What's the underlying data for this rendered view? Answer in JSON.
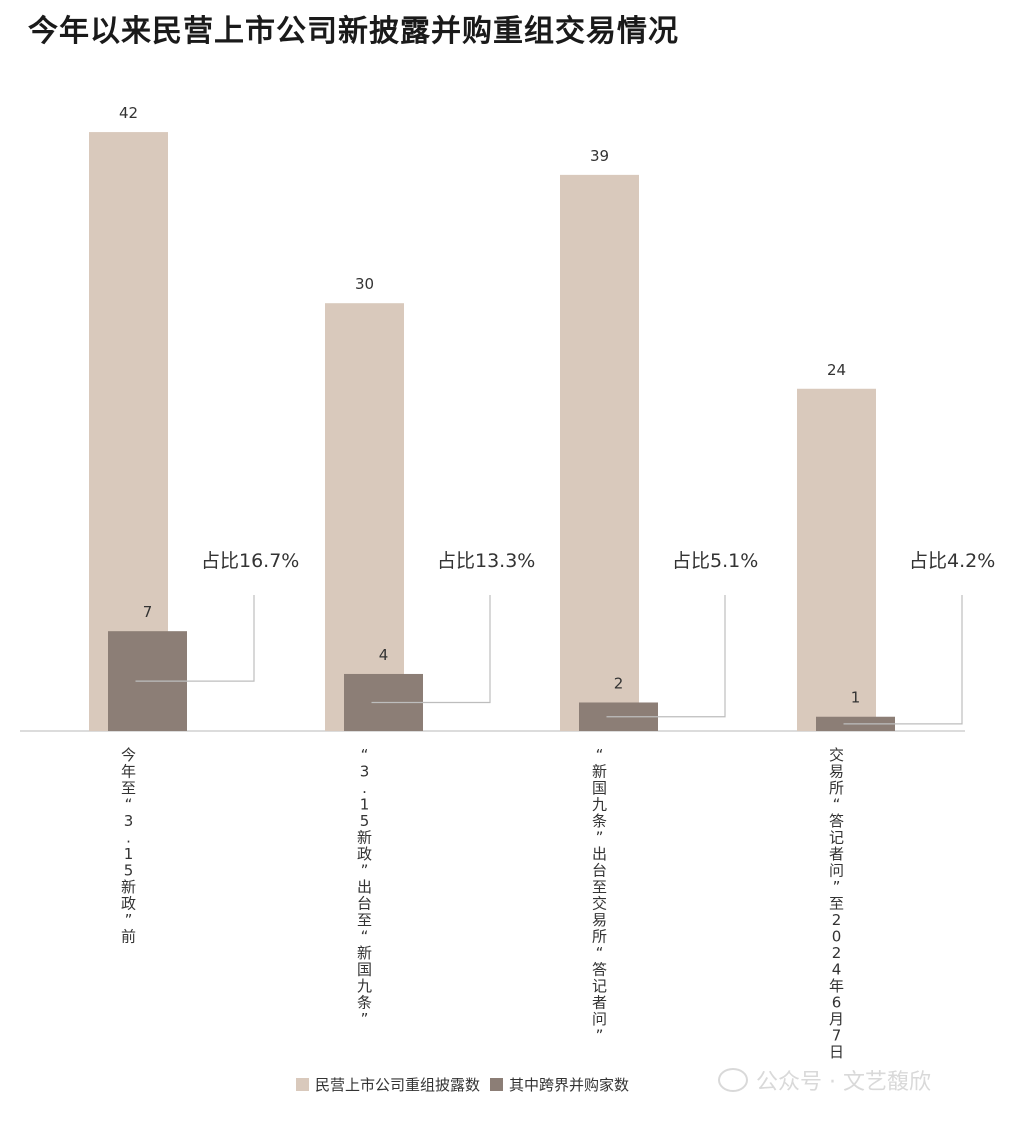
{
  "chart_data": {
    "type": "bar",
    "title": "今年以来民营上市公司新披露并购重组交易情况",
    "categories": [
      "今年至“3.15新政”前",
      "“3.15新政”出台至“新国九条”",
      "“新国九条”出台至交易所“答记者问”",
      "交易所“答记者问”至2024年6月7日"
    ],
    "series": [
      {
        "name": "民营上市公司重组披露数",
        "values": [
          42,
          30,
          39,
          24
        ],
        "color": "#d9c9bc"
      },
      {
        "name": "其中跨界并购家数",
        "values": [
          7,
          4,
          2,
          1
        ],
        "color": "#8c7e76"
      }
    ],
    "annotations": [
      "占比16.7%",
      "占比13.3%",
      "占比5.1%",
      "占比4.2%"
    ],
    "ylim": [
      0,
      42
    ],
    "legend_position": "bottom",
    "grid": false
  },
  "watermark": {
    "text": "公众号 · 文艺馥欣",
    "icon": "wechat-icon"
  }
}
